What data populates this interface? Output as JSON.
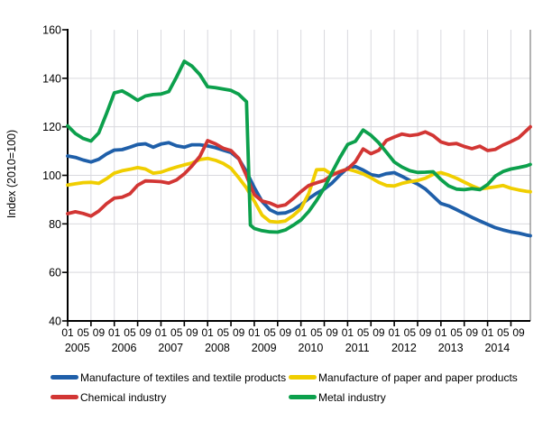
{
  "figure": {
    "background": "#ffffff"
  },
  "chart_data": {
    "type": "line",
    "title": "",
    "ylabel": "Index (2010=100)",
    "ylim": [
      40,
      160
    ],
    "y_ticks": [
      40,
      60,
      80,
      100,
      120,
      140,
      160
    ],
    "x_unit": "months since 2005-01",
    "x_range_months": [
      0,
      119
    ],
    "years": [
      "2005",
      "2006",
      "2007",
      "2008",
      "2009",
      "2010",
      "2011",
      "2012",
      "2013",
      "2014"
    ],
    "month_tick_labels": [
      "01",
      "05",
      "09"
    ],
    "month_label_offsets": [
      0,
      4,
      8
    ],
    "grid": {
      "vertical_every_months": 6,
      "horizontal_ticks": [
        60,
        80,
        100,
        120,
        140
      ],
      "color": "#d9d9de"
    },
    "axis_color": "#000000",
    "plot_right_border_color": "#808080",
    "legend_position": "bottom",
    "months": [
      0,
      2,
      4,
      6,
      8,
      10,
      12,
      14,
      16,
      18,
      20,
      22,
      24,
      26,
      28,
      30,
      32,
      34,
      36,
      38,
      40,
      42,
      44,
      46,
      47,
      48,
      50,
      52,
      54,
      56,
      58,
      60,
      62,
      64,
      66,
      68,
      70,
      72,
      74,
      76,
      78,
      80,
      82,
      84,
      86,
      88,
      90,
      92,
      94,
      96,
      98,
      100,
      102,
      104,
      106,
      108,
      110,
      112,
      114,
      116,
      118,
      119
    ],
    "series": [
      {
        "name": "Manufacture of textiles and textile products",
        "color": "#1F5FA9",
        "values": [
          108,
          107.4,
          106.3,
          105.5,
          106.6,
          108.8,
          110.4,
          110.6,
          111.6,
          112.7,
          113,
          111.6,
          112.9,
          113.5,
          112.2,
          111.6,
          112.6,
          112.6,
          112.1,
          111.4,
          110.4,
          109.4,
          106.8,
          101.5,
          98.2,
          95,
          89.3,
          85.8,
          84.3,
          84.5,
          85.8,
          87.9,
          90.4,
          92.6,
          94.3,
          96.8,
          100.1,
          103,
          103.6,
          102.2,
          100.3,
          99.7,
          100.7,
          101.1,
          99.6,
          97.9,
          96.4,
          94.4,
          91.4,
          88.4,
          87.4,
          85.9,
          84.3,
          82.7,
          81.2,
          79.8,
          78.4,
          77.5,
          76.7,
          76.2,
          75.4,
          75.1
        ]
      },
      {
        "name": "Manufacture of paper and paper products",
        "color": "#F0CE00",
        "values": [
          96,
          96.5,
          97,
          97.1,
          96.7,
          98.6,
          100.9,
          101.9,
          102.5,
          103.2,
          102.6,
          100.9,
          101.3,
          102.4,
          103.4,
          104.3,
          105.1,
          106.5,
          107,
          106.2,
          104.9,
          102.9,
          99,
          94.8,
          92,
          89.4,
          83.6,
          81,
          80.7,
          81.2,
          83.4,
          86.3,
          92.5,
          102.3,
          102.4,
          100.3,
          101.6,
          102.6,
          101.7,
          100.6,
          99,
          97.1,
          95.8,
          95.6,
          96.7,
          97.4,
          97.9,
          98.8,
          100.4,
          101.1,
          100.1,
          98.8,
          97.2,
          95.7,
          94.4,
          94.8,
          95.3,
          95.8,
          94.7,
          94,
          93.4,
          93.2
        ]
      },
      {
        "name": "Chemical industry",
        "color": "#D23634",
        "values": [
          84.2,
          85,
          84.3,
          83.2,
          85.3,
          88.3,
          90.6,
          91,
          92.4,
          95.9,
          97.7,
          97.6,
          97.4,
          96.8,
          98.1,
          100.6,
          103.9,
          107.8,
          114.3,
          113,
          111.2,
          110.2,
          107,
          99.8,
          95.8,
          92.1,
          89.4,
          88.6,
          87.2,
          87.8,
          90.4,
          93.3,
          95.8,
          96.9,
          97.9,
          100.1,
          101.5,
          102.6,
          105.6,
          110.9,
          108.9,
          110.3,
          114.4,
          115.8,
          117,
          116.4,
          116.8,
          117.9,
          116.4,
          113.8,
          112.8,
          113.1,
          111.9,
          111,
          112,
          110.2,
          110.7,
          112.5,
          113.9,
          115.5,
          118.5,
          120
        ]
      },
      {
        "name": "Metal industry",
        "color": "#0CA04C",
        "values": [
          120.4,
          117.2,
          115.2,
          114.1,
          117.5,
          125.5,
          134,
          134.8,
          133,
          130.9,
          132.7,
          133.3,
          133.5,
          134.5,
          140.5,
          147,
          145,
          141.5,
          136.5,
          136.1,
          135.6,
          135,
          133.4,
          130.3,
          79.5,
          78.1,
          77.2,
          76.7,
          76.6,
          77.5,
          79.4,
          81.6,
          85.1,
          89.6,
          94.8,
          101.2,
          107.3,
          112.7,
          114,
          118.7,
          116.5,
          113.4,
          109.5,
          105.5,
          103.4,
          101.9,
          101.2,
          101.3,
          101.5,
          98.3,
          95.6,
          94.3,
          94.1,
          94.5,
          94.1,
          96.2,
          99.7,
          101.6,
          102.6,
          103.2,
          103.9,
          104.5
        ]
      }
    ]
  },
  "legend": {
    "columns": 2
  }
}
